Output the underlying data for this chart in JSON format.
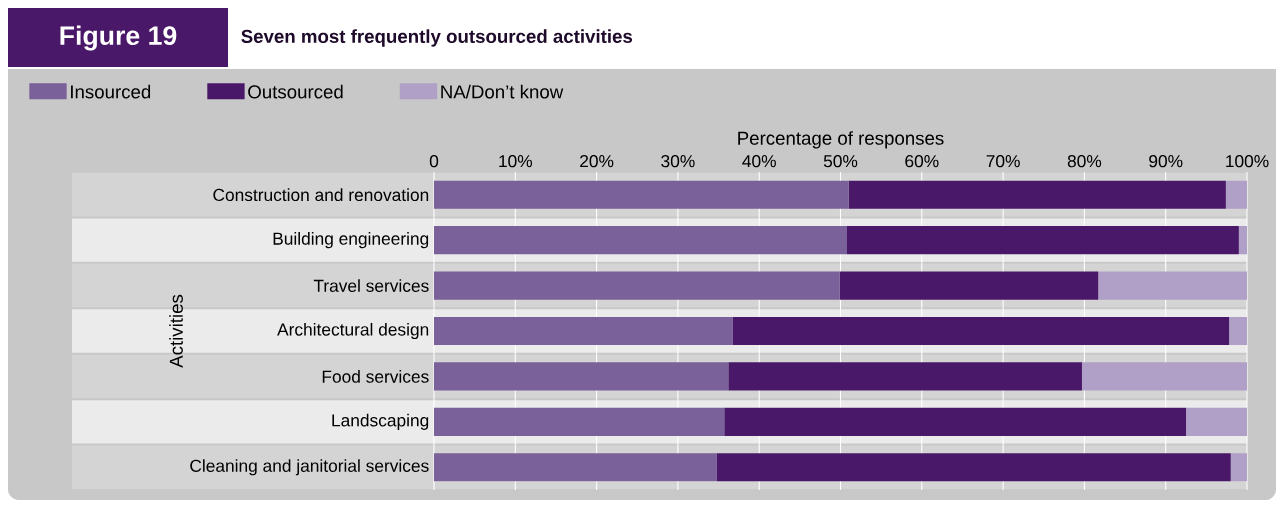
{
  "chart_data": {
    "type": "bar",
    "orientation": "horizontal",
    "stacked": true,
    "title": "Figure 19",
    "subtitle": "Seven most frequently outsourced activities",
    "xlabel": "Percentage of responses",
    "ylabel": "Activities",
    "categories": [
      "Construction and renovation",
      "Building engineering",
      "Travel services",
      "Architectural design",
      "Food services",
      "Landscaping",
      "Cleaning and janitorial services"
    ],
    "series": [
      {
        "name": "Insourced",
        "color": "#7a6199",
        "values": [
          51.0,
          50.8,
          49.9,
          36.7,
          36.2,
          35.7,
          34.8
        ]
      },
      {
        "name": "Outsourced",
        "color": "#4a1868",
        "values": [
          46.4,
          48.2,
          31.8,
          61.1,
          43.5,
          56.8,
          63.2
        ]
      },
      {
        "name": "NA/Don’t know",
        "color": "#b09fc6",
        "values": [
          2.6,
          1.0,
          18.3,
          2.2,
          20.3,
          7.5,
          2.0
        ]
      }
    ],
    "xlim": [
      0,
      100
    ],
    "xticks": [
      0,
      {
        "value": 10,
        "label": "10%"
      },
      {
        "value": 20,
        "label": "20%"
      },
      {
        "value": 30,
        "label": "30%"
      },
      {
        "value": 40,
        "label": "40%"
      },
      {
        "value": 50,
        "label": "50%"
      },
      {
        "value": 60,
        "label": "60%"
      },
      {
        "value": 70,
        "label": "70%"
      },
      {
        "value": 80,
        "label": "80%"
      },
      {
        "value": 90,
        "label": "90%"
      },
      {
        "value": 100,
        "label": "100%"
      }
    ],
    "grid": "x",
    "legend": "top left"
  }
}
